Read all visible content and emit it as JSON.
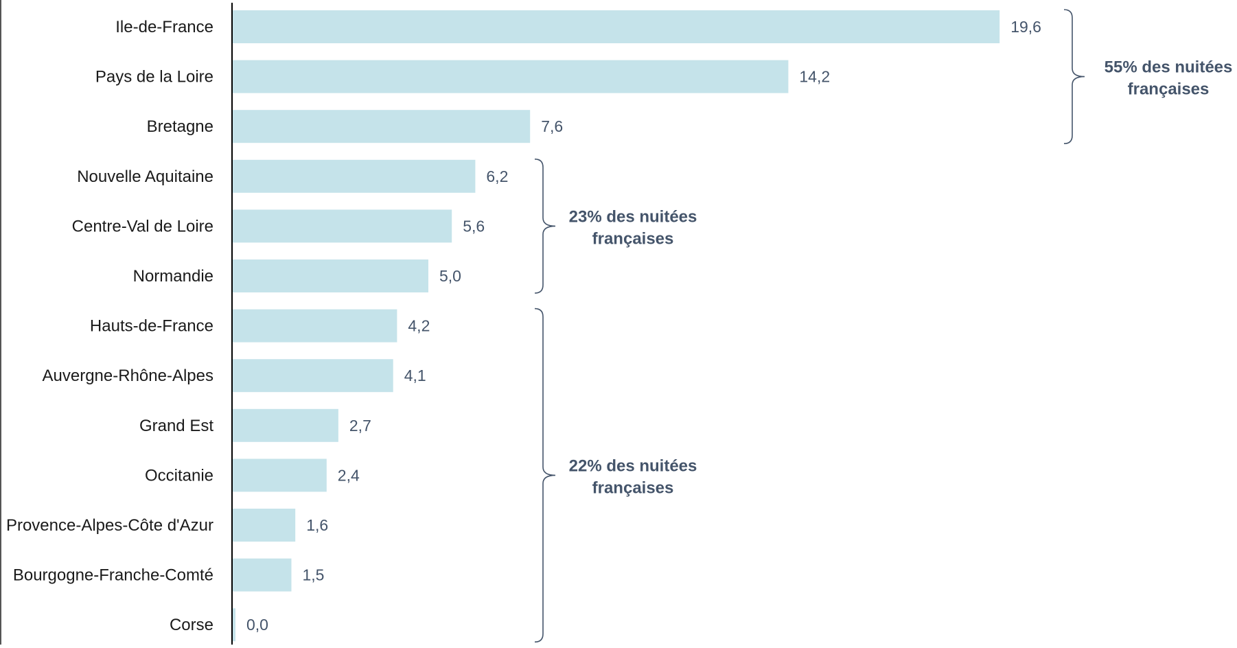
{
  "chart_data": {
    "type": "bar",
    "orientation": "horizontal",
    "categories": [
      "Ile-de-France",
      "Pays de la Loire",
      "Bretagne",
      "Nouvelle Aquitaine",
      "Centre-Val de Loire",
      "Normandie",
      "Hauts-de-France",
      "Auvergne-Rhône-Alpes",
      "Grand Est",
      "Occitanie",
      "Provence-Alpes-Côte d'Azur",
      "Bourgogne-Franche-Comté",
      "Corse"
    ],
    "values": [
      19.6,
      14.2,
      7.6,
      6.2,
      5.6,
      5.0,
      4.2,
      4.1,
      2.7,
      2.4,
      1.6,
      1.5,
      0.0
    ],
    "value_labels": [
      "19,6",
      "14,2",
      "7,6",
      "6,2",
      "5,6",
      "5,0",
      "4,2",
      "4,1",
      "2,7",
      "2,4",
      "1,6",
      "1,5",
      "0,0"
    ],
    "xlim": [
      0,
      20
    ],
    "bar_color": "#c5e3ea",
    "annotations": [
      {
        "first_index": 0,
        "last_index": 2,
        "lines": [
          "55% des nuitées",
          "françaises"
        ]
      },
      {
        "first_index": 3,
        "last_index": 5,
        "lines": [
          "23% des nuitées",
          "françaises"
        ]
      },
      {
        "first_index": 6,
        "last_index": 12,
        "lines": [
          "22% des nuitées",
          "françaises"
        ]
      }
    ],
    "title": "",
    "xlabel": "",
    "ylabel": "",
    "grid": false
  }
}
